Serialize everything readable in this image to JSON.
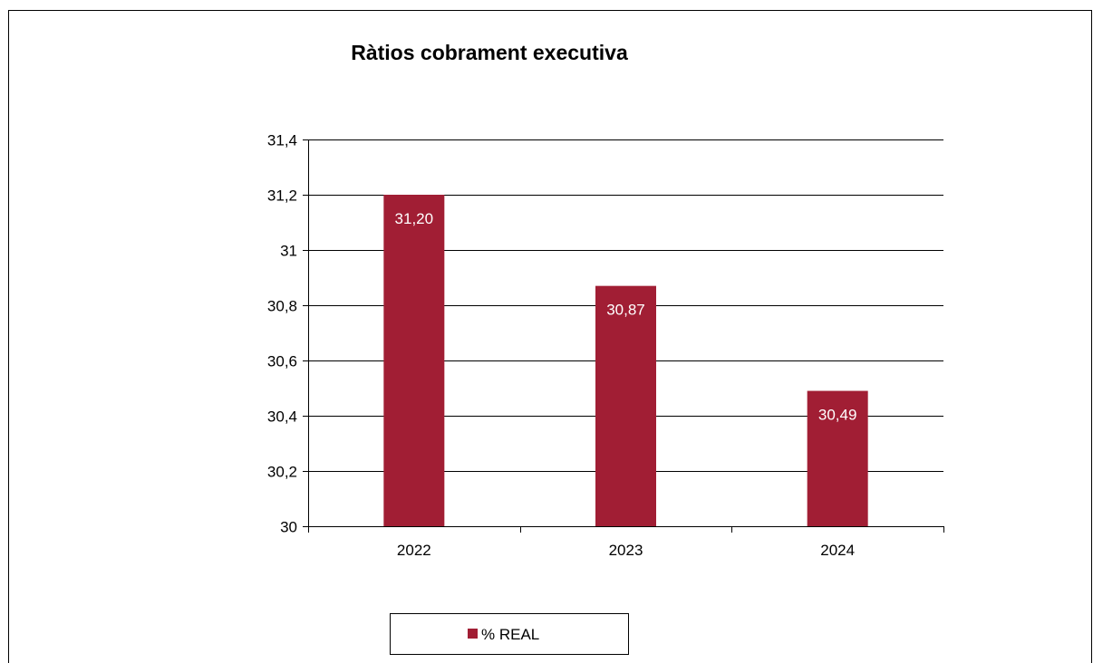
{
  "chart_data": {
    "type": "bar",
    "title": "Ràtios cobrament executiva",
    "categories": [
      "2022",
      "2023",
      "2024"
    ],
    "series": [
      {
        "name": "% REAL",
        "values": [
          31.2,
          30.87,
          30.49
        ],
        "data_labels": [
          "31,20",
          "30,87",
          "30,49"
        ],
        "color": "#A11E34"
      }
    ],
    "ylim": [
      30,
      31.4
    ],
    "y_ticks": [
      30,
      30.2,
      30.4,
      30.6,
      30.8,
      31,
      31.2,
      31.4
    ],
    "y_tick_labels": [
      "30",
      "30,2",
      "30,4",
      "30,6",
      "30,8",
      "31",
      "31,2",
      "31,4"
    ],
    "grid": true,
    "legend": "bottom",
    "xlabel": "",
    "ylabel": ""
  }
}
